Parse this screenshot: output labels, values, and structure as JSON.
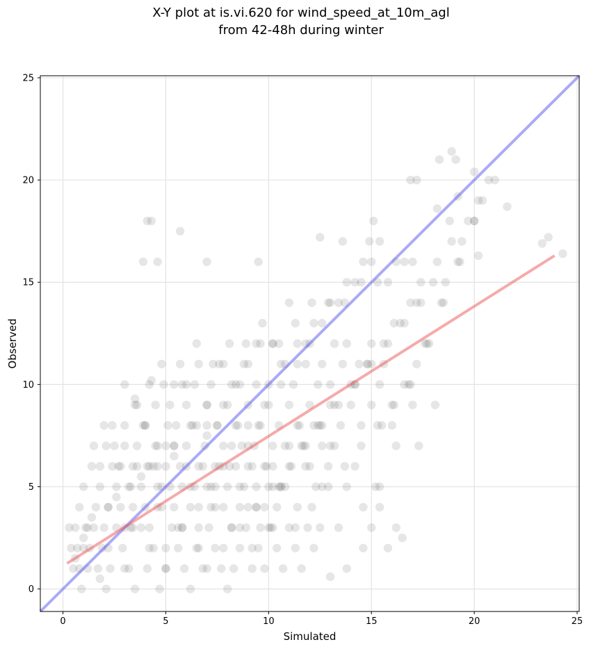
{
  "chart_data": {
    "type": "scatter",
    "title": [
      "X-Y plot at is.vi.620 for wind_speed_at_10m_agl",
      "from 42-48h during winter"
    ],
    "xlabel": "Simulated",
    "ylabel": "Observed",
    "xlim": [
      -1.1,
      25.1
    ],
    "ylim": [
      -1.1,
      25.1
    ],
    "xticks": [
      0,
      5,
      10,
      15,
      20,
      25
    ],
    "yticks": [
      0,
      5,
      10,
      15,
      20,
      25
    ],
    "grid": true,
    "colors": {
      "points": "#555555",
      "identity_line": "#5555ee",
      "fit_line": "#ee5555"
    },
    "identity_line": {
      "x": [
        -1.1,
        25.1
      ],
      "y": [
        -1.1,
        25.1
      ]
    },
    "fit_line": {
      "x": [
        0.2,
        23.9
      ],
      "y": [
        1.25,
        16.3
      ]
    },
    "points": {
      "x": [
        0.3,
        0.4,
        0.5,
        0.6,
        0.7,
        0.8,
        0.9,
        1.0,
        1.1,
        1.2,
        1.3,
        1.5,
        1.7,
        1.9,
        2.1,
        2.3,
        2.6,
        2.9,
        3.2,
        3.5,
        3.8,
        4.1,
        4.4,
        4.7,
        5.0,
        5.3,
        5.6,
        5.9,
        6.2,
        6.5,
        6.8,
        7.1,
        7.4,
        7.7,
        8.0,
        8.3,
        8.6,
        8.9,
        9.2,
        9.5,
        9.8,
        10.1,
        10.4,
        10.7,
        11.0,
        11.3,
        11.6,
        11.9,
        12.2,
        12.5,
        0.8,
        1.0,
        1.2,
        1.4,
        1.6,
        1.8,
        2.0,
        2.2,
        2.4,
        2.6,
        2.8,
        3.0,
        3.2,
        3.4,
        3.6,
        3.8,
        4.0,
        4.2,
        4.4,
        4.6,
        4.8,
        5.0,
        5.2,
        5.4,
        5.6,
        5.8,
        6.0,
        6.2,
        6.4,
        6.6,
        6.8,
        7.0,
        7.2,
        7.4,
        7.6,
        7.8,
        8.0,
        8.2,
        8.4,
        8.6,
        8.8,
        9.0,
        9.2,
        9.4,
        9.6,
        9.8,
        10.0,
        10.2,
        10.4,
        10.6,
        1.5,
        1.8,
        2.1,
        2.4,
        2.7,
        3.0,
        3.3,
        3.6,
        3.9,
        4.2,
        4.5,
        4.8,
        5.1,
        5.4,
        5.7,
        6.0,
        6.3,
        6.6,
        6.9,
        7.2,
        7.5,
        7.8,
        8.1,
        8.4,
        8.7,
        9.0,
        9.3,
        9.6,
        9.9,
        10.2,
        10.5,
        10.8,
        11.1,
        11.4,
        11.7,
        12.0,
        12.3,
        12.6,
        12.9,
        13.2,
        2.0,
        2.5,
        3.0,
        3.5,
        4.0,
        4.5,
        5.0,
        5.5,
        6.0,
        6.5,
        7.0,
        7.5,
        8.0,
        8.5,
        9.0,
        9.5,
        10.0,
        10.5,
        11.0,
        11.5,
        12.0,
        12.5,
        13.0,
        13.5,
        14.0,
        14.5,
        15.0,
        15.5,
        0.6,
        1.0,
        1.4,
        1.8,
        2.2,
        2.6,
        3.0,
        3.4,
        3.8,
        4.2,
        4.6,
        5.0,
        5.4,
        5.8,
        6.2,
        6.6,
        7.0,
        7.4,
        7.8,
        8.2,
        8.6,
        9.0,
        9.4,
        9.8,
        10.2,
        10.6,
        11.0,
        11.4,
        11.8,
        12.2,
        12.6,
        13.0,
        13.4,
        13.8,
        14.2,
        14.6,
        15.0,
        15.4,
        15.8,
        16.2,
        2.2,
        2.8,
        3.4,
        4.0,
        4.6,
        5.2,
        5.8,
        6.4,
        7.0,
        7.6,
        8.2,
        8.8,
        9.4,
        10.0,
        10.6,
        11.2,
        11.8,
        12.4,
        13.0,
        13.6,
        14.2,
        14.8,
        15.4,
        16.0,
        16.6,
        17.2,
        3.0,
        3.6,
        4.2,
        4.8,
        5.4,
        6.0,
        6.6,
        7.2,
        7.8,
        8.4,
        9.0,
        9.6,
        10.2,
        10.8,
        11.4,
        12.0,
        12.6,
        13.2,
        13.8,
        14.4,
        15.0,
        15.6,
        3.3,
        4.1,
        4.9,
        5.7,
        6.5,
        7.3,
        8.1,
        8.9,
        9.7,
        10.5,
        11.3,
        12.1,
        12.9,
        13.7,
        14.5,
        15.3,
        16.1,
        16.9,
        4.6,
        5.4,
        6.2,
        7.0,
        7.8,
        8.6,
        9.4,
        10.2,
        11.0,
        11.8,
        12.6,
        13.4,
        14.2,
        15.0,
        15.8,
        16.6,
        17.4,
        5.0,
        5.8,
        6.6,
        7.4,
        8.2,
        9.0,
        9.8,
        10.6,
        11.4,
        12.2,
        13.0,
        13.8,
        14.6,
        15.4,
        16.2,
        17.0,
        7.0,
        7.8,
        8.6,
        9.4,
        10.2,
        11.0,
        11.8,
        12.6,
        13.4,
        14.2,
        15.0,
        15.8,
        16.6,
        17.4,
        18.2,
        9.2,
        10.0,
        10.8,
        11.6,
        12.4,
        13.2,
        14.0,
        14.8,
        15.6,
        16.4,
        17.2,
        18.0,
        18.8,
        11.3,
        12.1,
        12.9,
        13.7,
        14.5,
        15.3,
        16.1,
        16.9,
        17.7,
        18.5,
        19.3,
        20.0,
        13.0,
        13.8,
        14.6,
        15.4,
        16.2,
        17.0,
        17.8,
        18.6,
        19.4,
        20.2,
        21.0,
        21.6,
        23.3,
        15.2,
        16.0,
        16.8,
        17.6,
        18.4,
        19.2,
        20.0,
        20.7,
        16.5,
        17.3,
        18.1,
        18.9,
        19.7,
        20.4,
        4.1,
        4.3,
        4.6,
        5.7,
        3.9,
        7.0,
        9.5,
        12.5,
        3.5,
        4.3,
        18.9,
        19.1,
        18.3,
        20.0,
        16.9,
        23.6,
        24.3,
        20.2,
        19.2,
        17.2,
        18.2,
        15.1,
        14.9,
        13.6
      ],
      "y": [
        3,
        2,
        1,
        3,
        2,
        1,
        0,
        2,
        3,
        1,
        2,
        3,
        1,
        2,
        0,
        1,
        3,
        2,
        1,
        0,
        3,
        1,
        2,
        0,
        1,
        3,
        2,
        1,
        0,
        2,
        1,
        3,
        2,
        1,
        0,
        1,
        2,
        3,
        1,
        2,
        1,
        3,
        2,
        1,
        3,
        2,
        1,
        3,
        2,
        3,
        4,
        5,
        3,
        6,
        4,
        5,
        3,
        4,
        6,
        5,
        4,
        3,
        5,
        4,
        6,
        5,
        4,
        3,
        6,
        5,
        4,
        6,
        5,
        4,
        3,
        5,
        6,
        4,
        5,
        3,
        6,
        5,
        4,
        5,
        6,
        4,
        5,
        3,
        6,
        4,
        5,
        4,
        6,
        5,
        3,
        4,
        5,
        6,
        4,
        5,
        7,
        6,
        7,
        8,
        6,
        7,
        5,
        7,
        8,
        6,
        7,
        5,
        8,
        7,
        6,
        7,
        8,
        6,
        7,
        5,
        8,
        7,
        6,
        8,
        7,
        6,
        7,
        8,
        6,
        7,
        5,
        7,
        6,
        8,
        7,
        6,
        5,
        7,
        6,
        7,
        8,
        7,
        8,
        9,
        8,
        9,
        7,
        8,
        9,
        8,
        9,
        8,
        9,
        8,
        9,
        8,
        9,
        8,
        9,
        8,
        9,
        8,
        9,
        8,
        9,
        8,
        9,
        8,
        1.5,
        2.5,
        3.5,
        0.5,
        2,
        4.5,
        1,
        3,
        5.5,
        2,
        4,
        1,
        6.5,
        3,
        5,
        2,
        7.5,
        4,
        6,
        3,
        5,
        7,
        4,
        6,
        3,
        5,
        7,
        4,
        6,
        8,
        5,
        7,
        3,
        5,
        6,
        4,
        3,
        5,
        2,
        3,
        4,
        6,
        6,
        8,
        7,
        9,
        10,
        10,
        9,
        11,
        10,
        11,
        10,
        10,
        11,
        10,
        11,
        10,
        10,
        11,
        10,
        11,
        10,
        9,
        10,
        11,
        10,
        9,
        10,
        11,
        10,
        10,
        11,
        10,
        11,
        10,
        11,
        12,
        12,
        11,
        12,
        12,
        11,
        12,
        12,
        11,
        12,
        11,
        3,
        6,
        10,
        11,
        12,
        11,
        12,
        12,
        13,
        12,
        13,
        14,
        14,
        14,
        15,
        15,
        13,
        14,
        6,
        7,
        8,
        8,
        9,
        10,
        12,
        12,
        14,
        12,
        13,
        14,
        15,
        16,
        15,
        16,
        14,
        2,
        3,
        4,
        6,
        7,
        8,
        9,
        10,
        11,
        13,
        14,
        15,
        16,
        17,
        16,
        16,
        1,
        2,
        3,
        4,
        5,
        6,
        7,
        8,
        9,
        10,
        11,
        12,
        13,
        15,
        16,
        2,
        3,
        5,
        7,
        8,
        9,
        10,
        11,
        12,
        13,
        14,
        15,
        18,
        3,
        4,
        5,
        6,
        7,
        8,
        9,
        10,
        12,
        14,
        16,
        18,
        0.6,
        1,
        2,
        4,
        7,
        9,
        12,
        15,
        17,
        19,
        20,
        18.7,
        16.9,
        5,
        8,
        10,
        12,
        14,
        16,
        18,
        20,
        2.5,
        7,
        9,
        17,
        18,
        19,
        18,
        18,
        16,
        17.5,
        16,
        16,
        16,
        17.2,
        9.3,
        10.2,
        21.4,
        21.0,
        21.0,
        20.4,
        20.0,
        17.2,
        16.4,
        16.3,
        19.2,
        20.0,
        18.6,
        18.0,
        17.0,
        17.0
      ]
    }
  }
}
